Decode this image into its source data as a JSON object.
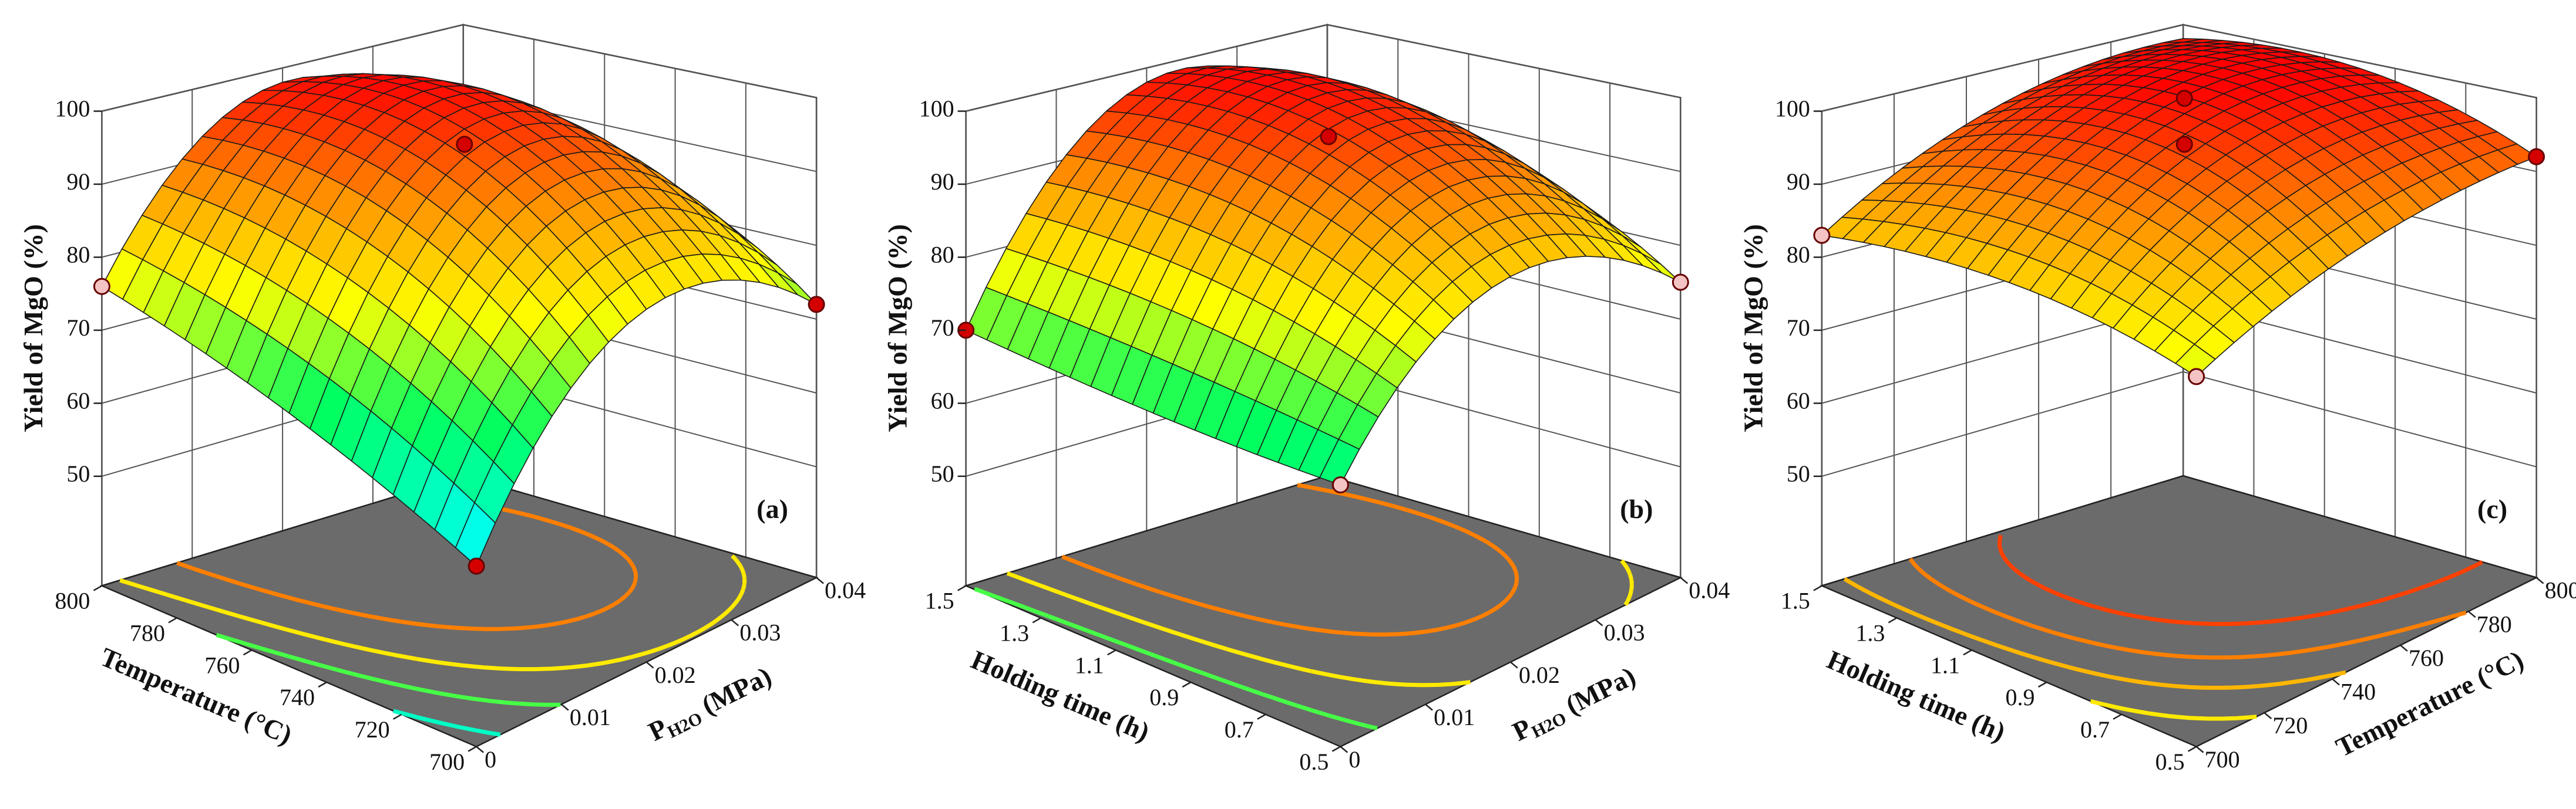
{
  "chart_data": [
    {
      "type": "surface3d",
      "panel_label": "(a)",
      "xlabel": "Temperature (°C)",
      "ylabel": {
        "text": "P",
        "sub": "H2O",
        "unit": " (MPa)"
      },
      "zlabel": "Yield of MgO (%)",
      "x": [
        700,
        750,
        800
      ],
      "y": [
        0,
        0.02,
        0.04
      ],
      "z": [
        [
          55,
          78,
          72
        ],
        [
          66,
          96,
          84
        ],
        [
          76,
          98,
          80
        ]
      ],
      "xlim": [
        700,
        800
      ],
      "xticks": [
        700,
        720,
        740,
        760,
        780,
        800
      ],
      "ylim": [
        0,
        0.04
      ],
      "yticks": [
        0,
        0.01,
        0.02,
        0.03,
        0.04
      ],
      "zlim": [
        35,
        100
      ],
      "zticks": [
        50,
        60,
        70,
        80,
        90,
        100
      ],
      "points": {
        "x": [
          750,
          800,
          700,
          700
        ],
        "y": [
          0.02,
          0,
          0.04,
          0
        ],
        "z": [
          94,
          76,
          72,
          55
        ],
        "colors": [
          "#d40000",
          "#f4c4c4",
          "#d40000",
          "#d40000"
        ]
      },
      "colormap": [
        "#7070ff",
        "#00ffff",
        "#00ff60",
        "#ffff00",
        "#ff8c00",
        "#ff0000"
      ],
      "clim": [
        45,
        100
      ],
      "contour_levels": [
        50,
        60,
        70,
        80,
        90
      ],
      "floor_color": "#6b6b6b",
      "grid": true
    },
    {
      "type": "surface3d",
      "panel_label": "(b)",
      "xlabel": "Holding time (h)",
      "ylabel": {
        "text": "P",
        "sub": "H2O",
        "unit": " (MPa)"
      },
      "zlabel": "Yield of MgO (%)",
      "x": [
        0.5,
        1.0,
        1.5
      ],
      "y": [
        0,
        0.02,
        0.04
      ],
      "z": [
        [
          64,
          82,
          75
        ],
        [
          66,
          96,
          86
        ],
        [
          70,
          98,
          85
        ]
      ],
      "xlim": [
        0.5,
        1.5
      ],
      "xticks": [
        0.5,
        0.7,
        0.9,
        1.1,
        1.3,
        1.5
      ],
      "ylim": [
        0,
        0.04
      ],
      "yticks": [
        0,
        0.01,
        0.02,
        0.03,
        0.04
      ],
      "zlim": [
        35,
        100
      ],
      "zticks": [
        50,
        60,
        70,
        80,
        90,
        100
      ],
      "points": {
        "x": [
          1.0,
          1.5,
          0.5,
          0.5
        ],
        "y": [
          0.02,
          0,
          0.04,
          0
        ],
        "z": [
          95,
          70,
          75,
          64
        ],
        "colors": [
          "#d40000",
          "#d40000",
          "#f4c4c4",
          "#f4c4c4"
        ]
      },
      "colormap": [
        "#7070ff",
        "#00ffff",
        "#00ff60",
        "#ffff00",
        "#ff8c00",
        "#ff0000"
      ],
      "clim": [
        45,
        100
      ],
      "contour_levels": [
        60,
        70,
        80,
        90
      ],
      "floor_color": "#6b6b6b",
      "grid": true
    },
    {
      "type": "surface3d",
      "panel_label": "(c)",
      "xlabel": "Holding time (h)",
      "ylabel": "Temperature (°C)",
      "zlabel": "Yield of MgO (%)",
      "x": [
        0.5,
        1.0,
        1.5
      ],
      "y": [
        700,
        750,
        800
      ],
      "z": [
        [
          76,
          86,
          92
        ],
        [
          82,
          98,
          99
        ],
        [
          83,
          95,
          98
        ]
      ],
      "xlim": [
        0.5,
        1.5
      ],
      "xticks": [
        0.5,
        0.7,
        0.9,
        1.1,
        1.3,
        1.5
      ],
      "ylim": [
        700,
        800
      ],
      "yticks": [
        700,
        720,
        740,
        760,
        780,
        800
      ],
      "zlim": [
        35,
        100
      ],
      "zticks": [
        50,
        60,
        70,
        80,
        90,
        100
      ],
      "points": {
        "x": [
          1.0,
          1.0,
          1.5,
          0.5,
          0.5
        ],
        "y": [
          750,
          750,
          700,
          800,
          700
        ],
        "z": [
          100,
          94,
          83,
          92,
          76
        ],
        "colors": [
          "#d40000",
          "#d40000",
          "#f4c4c4",
          "#d40000",
          "#f4c4c4"
        ]
      },
      "colormap": [
        "#7070ff",
        "#00ffff",
        "#00ff60",
        "#ffff00",
        "#ff8c00",
        "#ff0000"
      ],
      "clim": [
        45,
        100
      ],
      "contour_levels": [
        80,
        85,
        90,
        95
      ],
      "floor_color": "#6b6b6b",
      "grid": true
    }
  ]
}
